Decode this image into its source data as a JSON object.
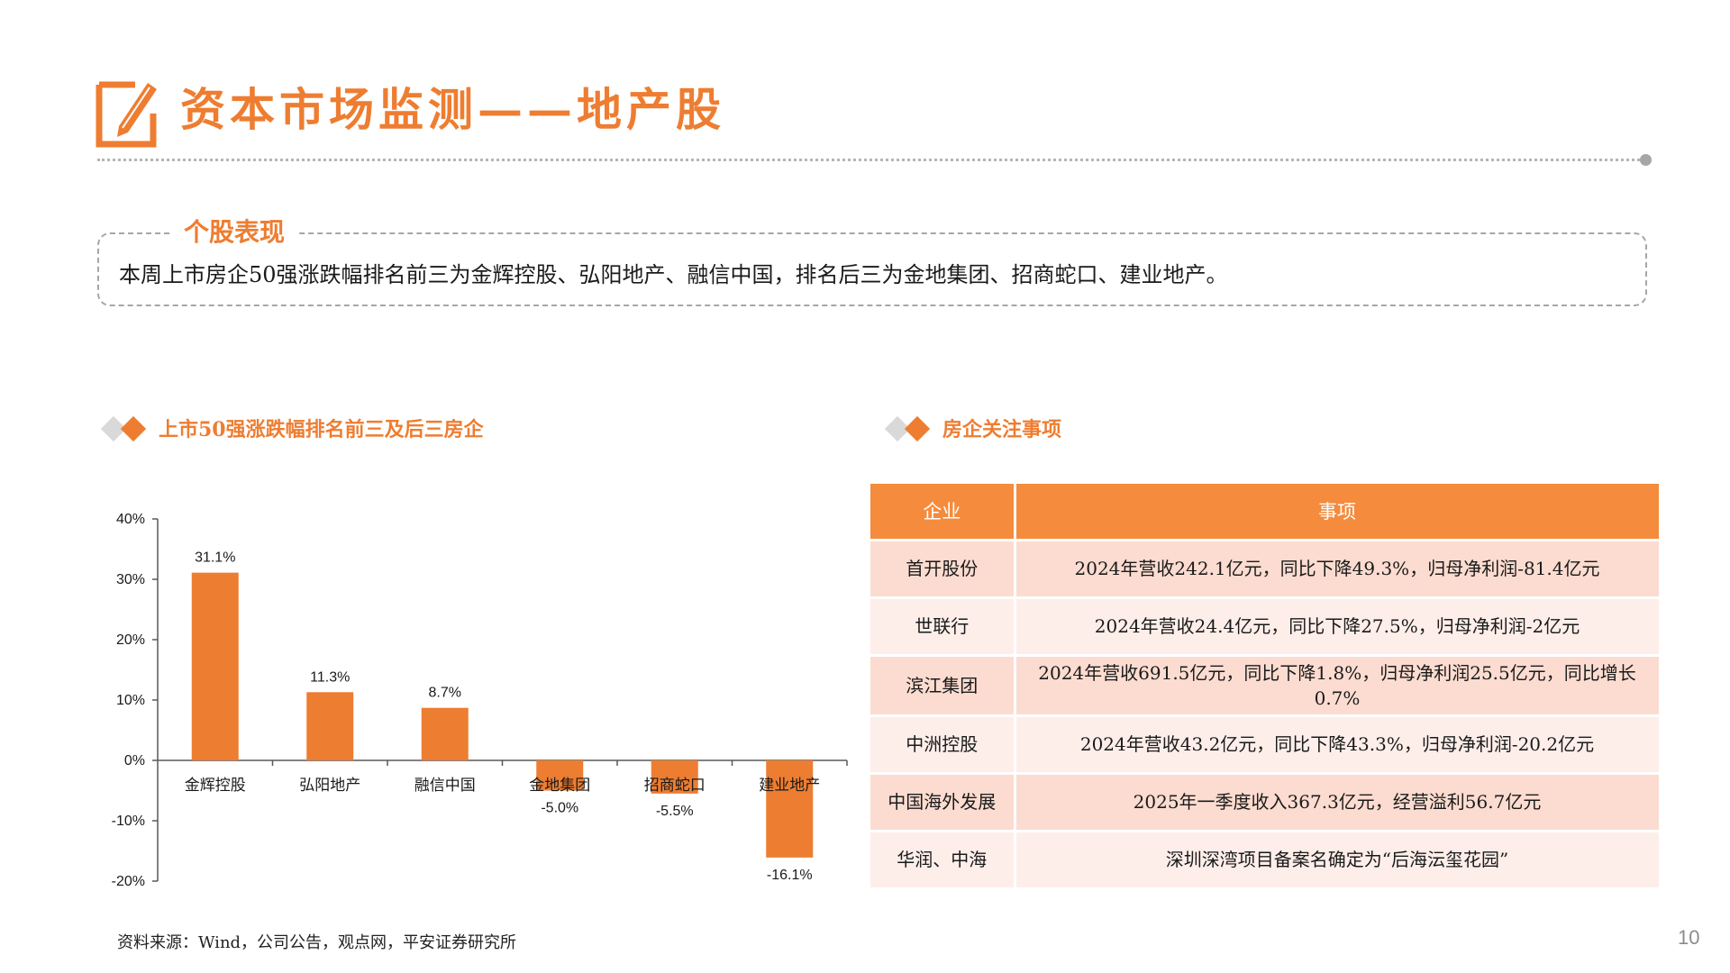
{
  "header": {
    "title": "资本市场监测——地产股",
    "accent": "#ee7d31",
    "icon": "pencil-edit-icon"
  },
  "summary": {
    "heading": "个股表现",
    "text": "本周上市房企50强涨跌幅排名前三为金辉控股、弘阳地产、融信中国，排名后三为金地集团、招商蛇口、建业地产。"
  },
  "chart_section": {
    "title": "上市50强涨跌幅排名前三及后三房企"
  },
  "table_section": {
    "title": "房企关注事项"
  },
  "chart_data": {
    "type": "bar",
    "title": "",
    "categories": [
      "金辉控股",
      "弘阳地产",
      "融信中国",
      "金地集团",
      "招商蛇口",
      "建业地产"
    ],
    "values": [
      31.1,
      11.3,
      8.7,
      -5.0,
      -5.5,
      -16.1
    ],
    "labels": [
      "31.1%",
      "11.3%",
      "8.7%",
      "-5.0%",
      "-5.5%",
      "-16.1%"
    ],
    "y_ticks": [
      "40%",
      "30%",
      "20%",
      "10%",
      "0%",
      "-10%",
      "-20%"
    ],
    "ylim": [
      -20,
      40
    ],
    "bar_color": "#ed7d31",
    "grid": false
  },
  "table": {
    "headers": [
      "企业",
      "事项"
    ],
    "rows": [
      {
        "company": "首开股份",
        "event": "2024年营收242.1亿元，同比下降49.3%，归母净利润-81.4亿元"
      },
      {
        "company": "世联行",
        "event": "2024年营收24.4亿元，同比下降27.5%，归母净利润-2亿元"
      },
      {
        "company": "滨江集团",
        "event": "2024年营收691.5亿元，同比下降1.8%，归母净利润25.5亿元，同比增长0.7%"
      },
      {
        "company": "中洲控股",
        "event": "2024年营收43.2亿元，同比下降43.3%，归母净利润-20.2亿元"
      },
      {
        "company": "中国海外发展",
        "event": "2025年一季度收入367.3亿元，经营溢利56.7亿元"
      },
      {
        "company": "华润、中海",
        "event": "深圳深湾项目备案名确定为“后海沄玺花园”"
      }
    ],
    "header_color": "#f58b3c"
  },
  "footer": {
    "source": "资料来源：Wind，公司公告，观点网，平安证券研究所",
    "page": "10"
  }
}
